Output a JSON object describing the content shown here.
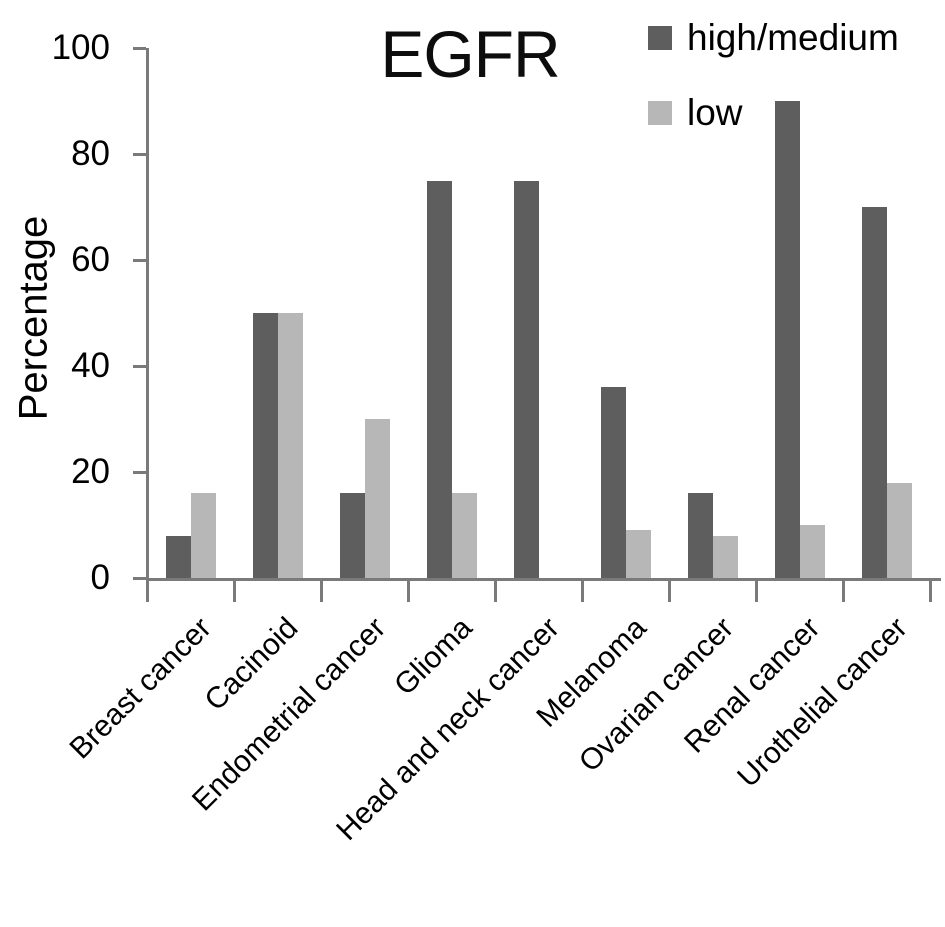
{
  "chart_data": {
    "type": "bar",
    "title": "EGFR",
    "xlabel": "",
    "ylabel": "Percentage",
    "categories": [
      "Breast cancer",
      "Cacinoid",
      "Endometrial cancer",
      "Glioma",
      "Head and neck cancer",
      "Melanoma",
      "Ovarian cancer",
      "Renal cancer",
      "Urothelial cancer"
    ],
    "series": [
      {
        "name": "high/medium",
        "color": "#5e5e5e",
        "values": [
          8,
          50,
          16,
          75,
          75,
          36,
          16,
          90,
          70
        ]
      },
      {
        "name": "low",
        "color": "#b7b7b7",
        "values": [
          16,
          50,
          30,
          16,
          0,
          9,
          8,
          10,
          18
        ]
      }
    ],
    "ylim": [
      0,
      100
    ],
    "yticks": [
      0,
      20,
      40,
      60,
      80,
      100
    ],
    "grid": false,
    "legend_position": "top-right"
  },
  "colors": {
    "axis": "#7a7a7a",
    "text": "#000000",
    "background": "#ffffff"
  }
}
